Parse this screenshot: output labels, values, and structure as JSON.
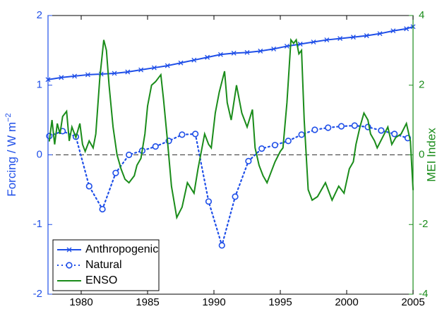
{
  "chart_data": {
    "type": "line",
    "xlim": [
      1977.5,
      2005
    ],
    "xticks": [
      1980,
      1985,
      1990,
      1995,
      2000,
      2005
    ],
    "ylim": [
      -2,
      2
    ],
    "yticks": [
      -2,
      -1,
      0,
      1,
      2
    ],
    "y2lim": [
      -4,
      4
    ],
    "y2ticks": [
      -4,
      -2,
      0,
      2,
      4
    ],
    "ylabel": "Forcing / W m",
    "ylabel_superscript": "−2",
    "y2label": "MEI Index",
    "ycolor": "#1f4fe8",
    "y2color": "#1a8c1a",
    "reference_line": 0,
    "legend": "lower left",
    "series": [
      {
        "name": "Anthropogenic",
        "color": "#1f4fe8",
        "style": "solid",
        "marker": "x",
        "x": [
          1977.5,
          1978.5,
          1979.5,
          1980.5,
          1981.5,
          1982.5,
          1983.5,
          1984.5,
          1985.5,
          1986.5,
          1987.5,
          1988.5,
          1989.5,
          1990.5,
          1991.5,
          1992.5,
          1993.5,
          1994.5,
          1995.5,
          1996.5,
          1997.5,
          1998.5,
          1999.5,
          2000.5,
          2001.5,
          2002.5,
          2003.5,
          2004.5,
          2005
        ],
        "values": [
          1.08,
          1.11,
          1.13,
          1.15,
          1.16,
          1.17,
          1.19,
          1.22,
          1.25,
          1.28,
          1.32,
          1.36,
          1.4,
          1.44,
          1.46,
          1.47,
          1.49,
          1.52,
          1.56,
          1.59,
          1.62,
          1.65,
          1.67,
          1.69,
          1.71,
          1.74,
          1.78,
          1.81,
          1.84
        ]
      },
      {
        "name": "Natural",
        "color": "#1f4fe8",
        "style": "dotted",
        "marker": "o",
        "x": [
          1977.6,
          1978.6,
          1979.6,
          1980.6,
          1981.6,
          1982.6,
          1983.6,
          1984.6,
          1985.6,
          1986.6,
          1987.6,
          1988.6,
          1989.6,
          1990.6,
          1991.6,
          1992.6,
          1993.6,
          1994.6,
          1995.6,
          1996.6,
          1997.6,
          1998.6,
          1999.6,
          2000.6,
          2001.6,
          2002.6,
          2003.6,
          2004.6
        ],
        "values": [
          0.27,
          0.34,
          0.26,
          -0.45,
          -0.78,
          -0.26,
          0,
          0.06,
          0.12,
          0.2,
          0.29,
          0.3,
          -0.67,
          -1.3,
          -0.6,
          -0.09,
          0.09,
          0.14,
          0.2,
          0.29,
          0.36,
          0.39,
          0.41,
          0.42,
          0.4,
          0.35,
          0.3,
          0.24
        ]
      },
      {
        "name": "ENSO",
        "color": "#1a8c1a",
        "style": "solid",
        "marker": "none",
        "axis": "y2",
        "x": [
          1977.6,
          1977.8,
          1978.0,
          1978.2,
          1978.4,
          1978.6,
          1978.9,
          1979.1,
          1979.3,
          1979.6,
          1979.9,
          1980.1,
          1980.3,
          1980.6,
          1980.9,
          1981.1,
          1981.4,
          1981.7,
          1981.9,
          1982.1,
          1982.4,
          1982.7,
          1983.0,
          1983.3,
          1983.6,
          1984.0,
          1984.2,
          1984.5,
          1984.8,
          1985.0,
          1985.3,
          1985.6,
          1986.0,
          1986.2,
          1986.5,
          1986.8,
          1987.2,
          1987.6,
          1988.0,
          1988.5,
          1988.8,
          1989.0,
          1989.3,
          1989.6,
          1989.8,
          1990.1,
          1990.4,
          1990.8,
          1991.0,
          1991.3,
          1991.7,
          1992.1,
          1992.5,
          1992.9,
          1993.1,
          1993.4,
          1993.7,
          1994.0,
          1994.3,
          1994.6,
          1995.0,
          1995.2,
          1995.5,
          1995.8,
          1996.0,
          1996.2,
          1996.4,
          1996.6,
          1996.8,
          1997.1,
          1997.4,
          1997.8,
          1998.1,
          1998.4,
          1998.9,
          1999.4,
          1999.8,
          2000.2,
          2000.5,
          2000.7,
          2001.0,
          2001.3,
          2001.6,
          2001.8,
          2002.1,
          2002.3,
          2002.7,
          2003.1,
          2003.4,
          2003.7,
          2004.1,
          2004.5,
          2004.8,
          2005.0
        ],
        "values": [
          0.4,
          1.0,
          0.3,
          0.9,
          0.6,
          1.1,
          1.25,
          0.4,
          0.8,
          0.5,
          0.9,
          0.3,
          0.1,
          0.4,
          0.2,
          0.6,
          2.2,
          3.3,
          3.0,
          2.0,
          0.8,
          0.0,
          -0.4,
          -0.7,
          -0.8,
          -0.6,
          -0.3,
          -0.1,
          0.6,
          1.4,
          2.0,
          2.1,
          2.3,
          1.6,
          0.4,
          -0.9,
          -1.8,
          -1.5,
          -0.8,
          -1.1,
          -0.4,
          0.0,
          0.6,
          0.3,
          0.2,
          1.2,
          1.8,
          2.4,
          1.5,
          1.0,
          2.0,
          1.2,
          0.8,
          1.3,
          0.2,
          -0.3,
          -0.6,
          -0.8,
          -0.5,
          -0.2,
          0.1,
          0.2,
          1.5,
          3.3,
          3.2,
          3.3,
          2.9,
          3.0,
          1.0,
          -1.0,
          -1.3,
          -1.2,
          -1.0,
          -0.8,
          -1.3,
          -0.9,
          -1.1,
          -0.4,
          -0.2,
          0.3,
          0.8,
          1.2,
          1.0,
          0.6,
          0.4,
          0.2,
          0.5,
          0.8,
          0.3,
          0.5,
          0.6,
          0.9,
          0.4,
          -1.0
        ]
      }
    ]
  }
}
